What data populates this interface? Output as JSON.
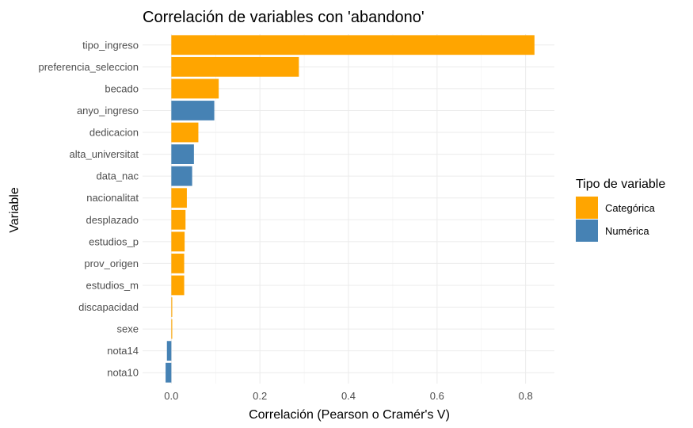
{
  "chart_data": {
    "type": "bar",
    "orientation": "horizontal",
    "title": "Correlación de variables con 'abandono'",
    "xlabel": "Correlación (Pearson o Cramér's V)",
    "ylabel": "Variable",
    "xlim": [
      -0.065,
      0.865
    ],
    "xticks": [
      0.0,
      0.2,
      0.4,
      0.6,
      0.8
    ],
    "xtick_labels": [
      "0.0",
      "0.2",
      "0.4",
      "0.6",
      "0.8"
    ],
    "grid": true,
    "legend": {
      "title": "Tipo de variable",
      "position": "right",
      "entries": [
        {
          "name": "Categórica",
          "color": "#FFA500"
        },
        {
          "name": "Numérica",
          "color": "#4682B4"
        }
      ]
    },
    "bars": [
      {
        "label": "tipo_ingreso",
        "value": 0.82,
        "type": "Categórica"
      },
      {
        "label": "preferencia_seleccion",
        "value": 0.288,
        "type": "Categórica"
      },
      {
        "label": "becado",
        "value": 0.107,
        "type": "Categórica"
      },
      {
        "label": "anyo_ingreso",
        "value": 0.097,
        "type": "Numérica"
      },
      {
        "label": "dedicacion",
        "value": 0.061,
        "type": "Categórica"
      },
      {
        "label": "alta_universitat",
        "value": 0.051,
        "type": "Numérica"
      },
      {
        "label": "data_nac",
        "value": 0.047,
        "type": "Numérica"
      },
      {
        "label": "nacionalitat",
        "value": 0.035,
        "type": "Categórica"
      },
      {
        "label": "desplazado",
        "value": 0.032,
        "type": "Categórica"
      },
      {
        "label": "estudios_p",
        "value": 0.03,
        "type": "Categórica"
      },
      {
        "label": "prov_origen",
        "value": 0.029,
        "type": "Categórica"
      },
      {
        "label": "estudios_m",
        "value": 0.029,
        "type": "Categórica"
      },
      {
        "label": "discapacidad",
        "value": 0.002,
        "type": "Categórica"
      },
      {
        "label": "sexe",
        "value": 0.002,
        "type": "Categórica"
      },
      {
        "label": "nota14",
        "value": -0.01,
        "type": "Numérica"
      },
      {
        "label": "nota10",
        "value": -0.013,
        "type": "Numérica"
      }
    ]
  }
}
